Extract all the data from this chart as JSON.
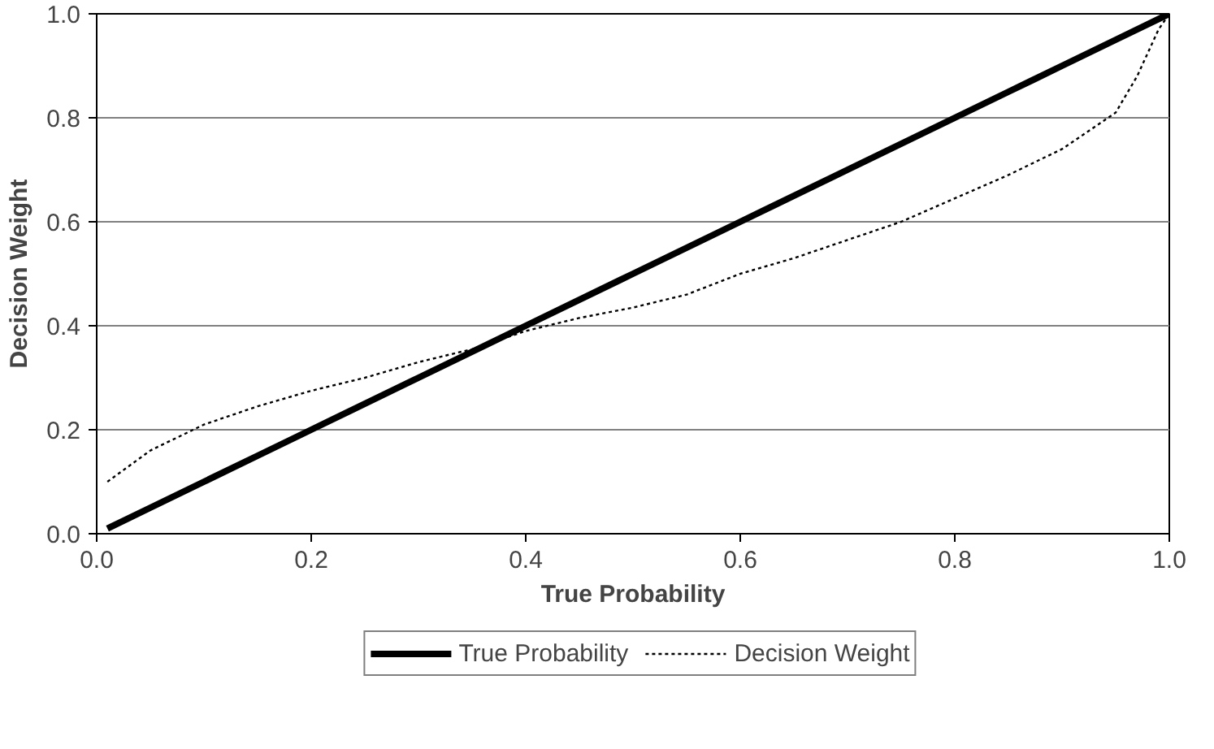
{
  "chart_data": {
    "type": "line",
    "xlabel": "True Probability",
    "ylabel": "Decision Weight",
    "xlim": [
      0,
      1
    ],
    "ylim": [
      0,
      1
    ],
    "xticks": [
      {
        "value": 0,
        "label": "0.0"
      },
      {
        "value": 0.2,
        "label": "0.2"
      },
      {
        "value": 0.4,
        "label": "0.4"
      },
      {
        "value": 0.6,
        "label": "0.6"
      },
      {
        "value": 0.8,
        "label": "0.8"
      },
      {
        "value": 1,
        "label": "1.0"
      }
    ],
    "yticks": [
      {
        "value": 0,
        "label": "0.0"
      },
      {
        "value": 0.2,
        "label": "0.2"
      },
      {
        "value": 0.4,
        "label": "0.4"
      },
      {
        "value": 0.6,
        "label": "0.6"
      },
      {
        "value": 0.8,
        "label": "0.8"
      },
      {
        "value": 1,
        "label": "1.0"
      }
    ],
    "grid": "y",
    "legend": "bottom",
    "marker": "none",
    "series": [
      {
        "name": "True Probability",
        "color": "#000000",
        "line_style": "solid",
        "x": [
          0.01,
          0.05,
          0.1,
          0.15,
          0.2,
          0.3,
          0.4,
          0.5,
          0.6,
          0.7,
          0.8,
          0.85,
          0.9,
          0.95,
          1.0
        ],
        "values": [
          0.01,
          0.05,
          0.1,
          0.15,
          0.2,
          0.3,
          0.4,
          0.5,
          0.6,
          0.7,
          0.8,
          0.85,
          0.9,
          0.95,
          1.0
        ]
      },
      {
        "name": "Decision Weight",
        "color": "#000000",
        "line_style": "dotted",
        "x": [
          0.01,
          0.05,
          0.1,
          0.15,
          0.2,
          0.25,
          0.3,
          0.35,
          0.4,
          0.45,
          0.5,
          0.55,
          0.6,
          0.65,
          0.7,
          0.75,
          0.8,
          0.85,
          0.9,
          0.95,
          0.97,
          0.99,
          1.0
        ],
        "values": [
          0.1,
          0.16,
          0.21,
          0.245,
          0.275,
          0.3,
          0.33,
          0.355,
          0.39,
          0.415,
          0.435,
          0.46,
          0.5,
          0.53,
          0.565,
          0.6,
          0.645,
          0.69,
          0.74,
          0.81,
          0.88,
          0.97,
          1.0
        ]
      }
    ]
  }
}
